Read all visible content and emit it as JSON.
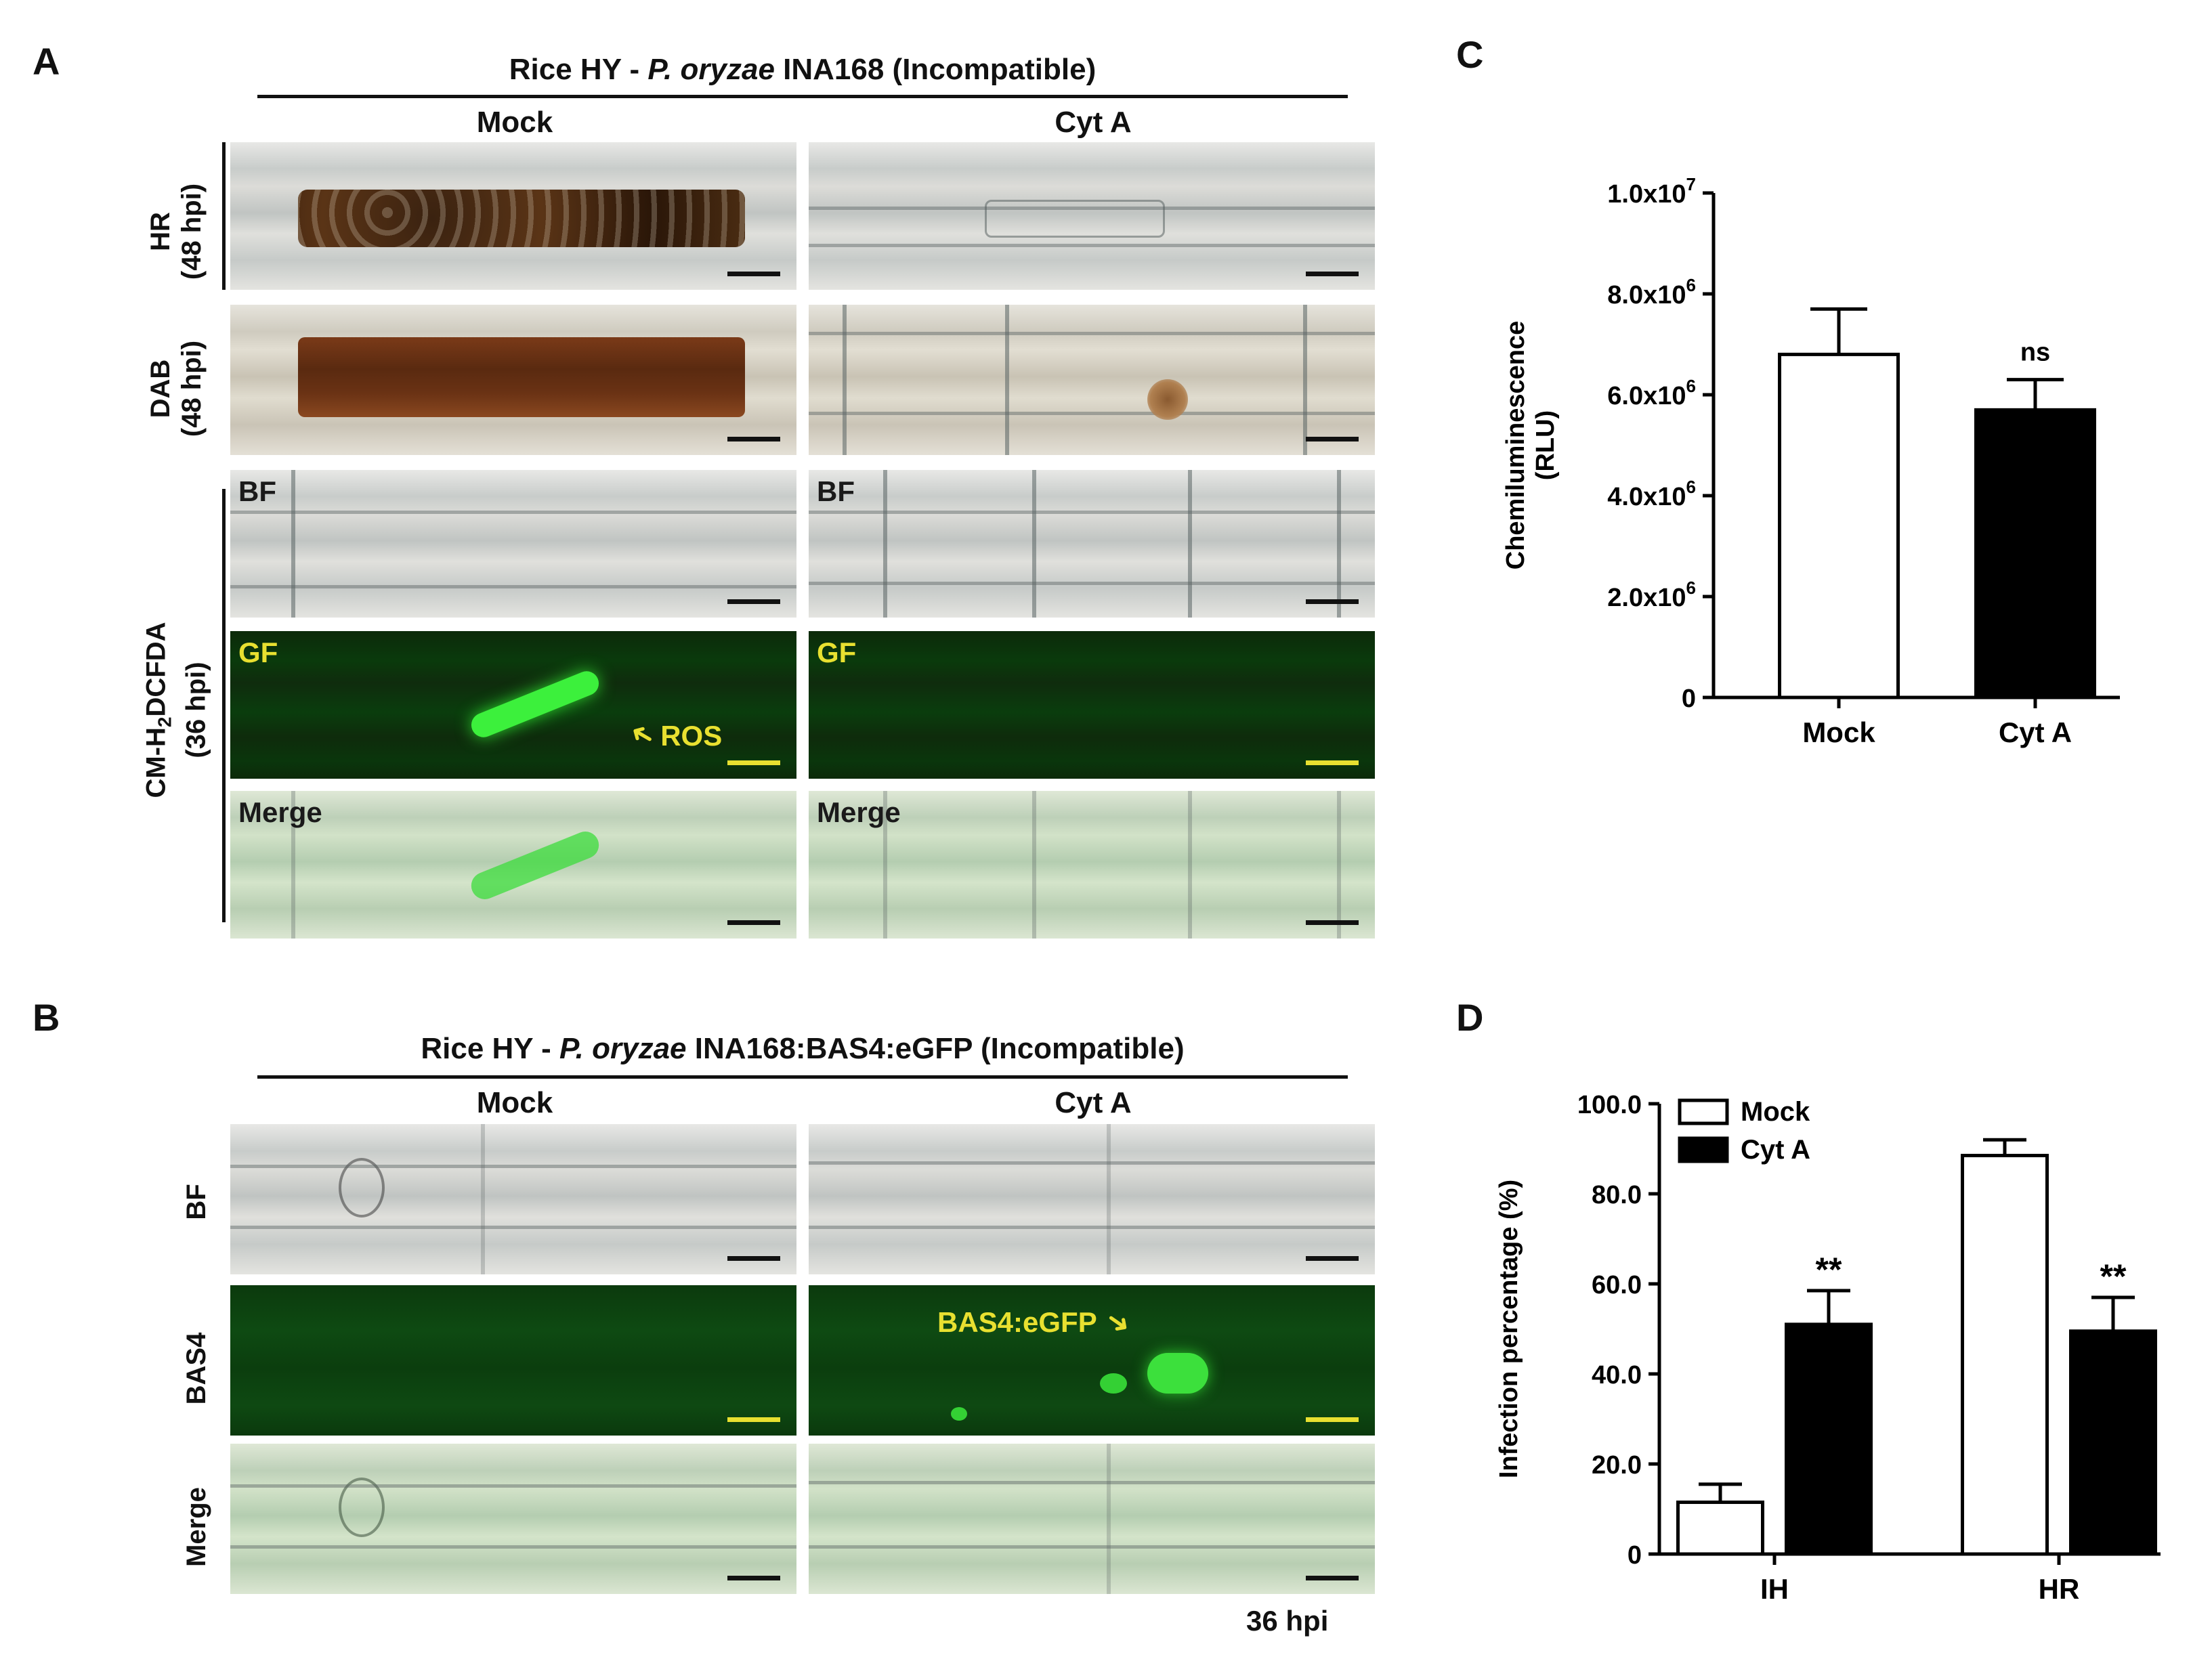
{
  "panel_a": {
    "letter": "A",
    "header_prefix": "Rice HY - ",
    "header_italic": "P. oryzae",
    "header_suffix": " INA168 (Incompatible)",
    "col_mock": "Mock",
    "col_cyta": "Cyt A",
    "row_hr_line1": "HR",
    "row_hr_line2": "(48 hpi)",
    "row_dab_line1": "DAB",
    "row_dab_line2": "(48 hpi)",
    "row_cm_line1_pre": "CM-H",
    "row_cm_line1_sub": "2",
    "row_cm_line1_post": "DCFDA",
    "row_cm_line2": "(36 hpi)",
    "tag_bf": "BF",
    "tag_gf": "GF",
    "tag_merge": "Merge",
    "ros_label": "ROS"
  },
  "panel_b": {
    "letter": "B",
    "header_prefix": "Rice HY - ",
    "header_italic": "P. oryzae",
    "header_suffix": " INA168:BAS4:eGFP (Incompatible)",
    "col_mock": "Mock",
    "col_cyta": "Cyt A",
    "row_bf": "BF",
    "row_bas4": "BAS4",
    "row_merge": "Merge",
    "bas4_label": "BAS4:eGFP",
    "footer": "36 hpi"
  },
  "panel_c": {
    "letter": "C"
  },
  "panel_d": {
    "letter": "D"
  },
  "chart_data": [
    {
      "type": "bar",
      "panel": "C",
      "categories": [
        "Mock",
        "Cyt A"
      ],
      "values": [
        6800000,
        5700000
      ],
      "errors": [
        900000,
        600000
      ],
      "fills": [
        "#ffffff",
        "#000000"
      ],
      "ylabel_line1": "Chemiluminescence",
      "ylabel_line2": "(RLU)",
      "ylim": [
        0,
        10000000
      ],
      "yticks": [
        {
          "v": 0,
          "label": "0",
          "exp": ""
        },
        {
          "v": 2000000,
          "label": "2.0x10",
          "exp": "6"
        },
        {
          "v": 4000000,
          "label": "4.0x10",
          "exp": "6"
        },
        {
          "v": 6000000,
          "label": "6.0x10",
          "exp": "6"
        },
        {
          "v": 8000000,
          "label": "8.0x10",
          "exp": "6"
        },
        {
          "v": 10000000,
          "label": "1.0x10",
          "exp": "7"
        }
      ],
      "annotations": [
        {
          "category": "Cyt A",
          "text": "ns"
        }
      ]
    },
    {
      "type": "bar",
      "panel": "D",
      "categories": [
        "IH",
        "HR"
      ],
      "series": [
        {
          "name": "Mock",
          "values": [
            11.5,
            88.5
          ],
          "errors": [
            4.0,
            3.5
          ],
          "fill": "#ffffff"
        },
        {
          "name": "Cyt A",
          "values": [
            51.0,
            49.5
          ],
          "errors": [
            7.5,
            7.5
          ],
          "fill": "#000000"
        }
      ],
      "ylabel": "Infection percentage (%)",
      "ylim": [
        0,
        100
      ],
      "yticks": [
        {
          "v": 0,
          "label": "0"
        },
        {
          "v": 20,
          "label": "20.0"
        },
        {
          "v": 40,
          "label": "40.0"
        },
        {
          "v": 60,
          "label": "60.0"
        },
        {
          "v": 80,
          "label": "80.0"
        },
        {
          "v": 100,
          "label": "100.0"
        }
      ],
      "annotations": [
        {
          "category": "IH",
          "series": "Cyt A",
          "text": "**"
        },
        {
          "category": "HR",
          "series": "Cyt A",
          "text": "**"
        }
      ],
      "legend_position": "top-left"
    }
  ]
}
